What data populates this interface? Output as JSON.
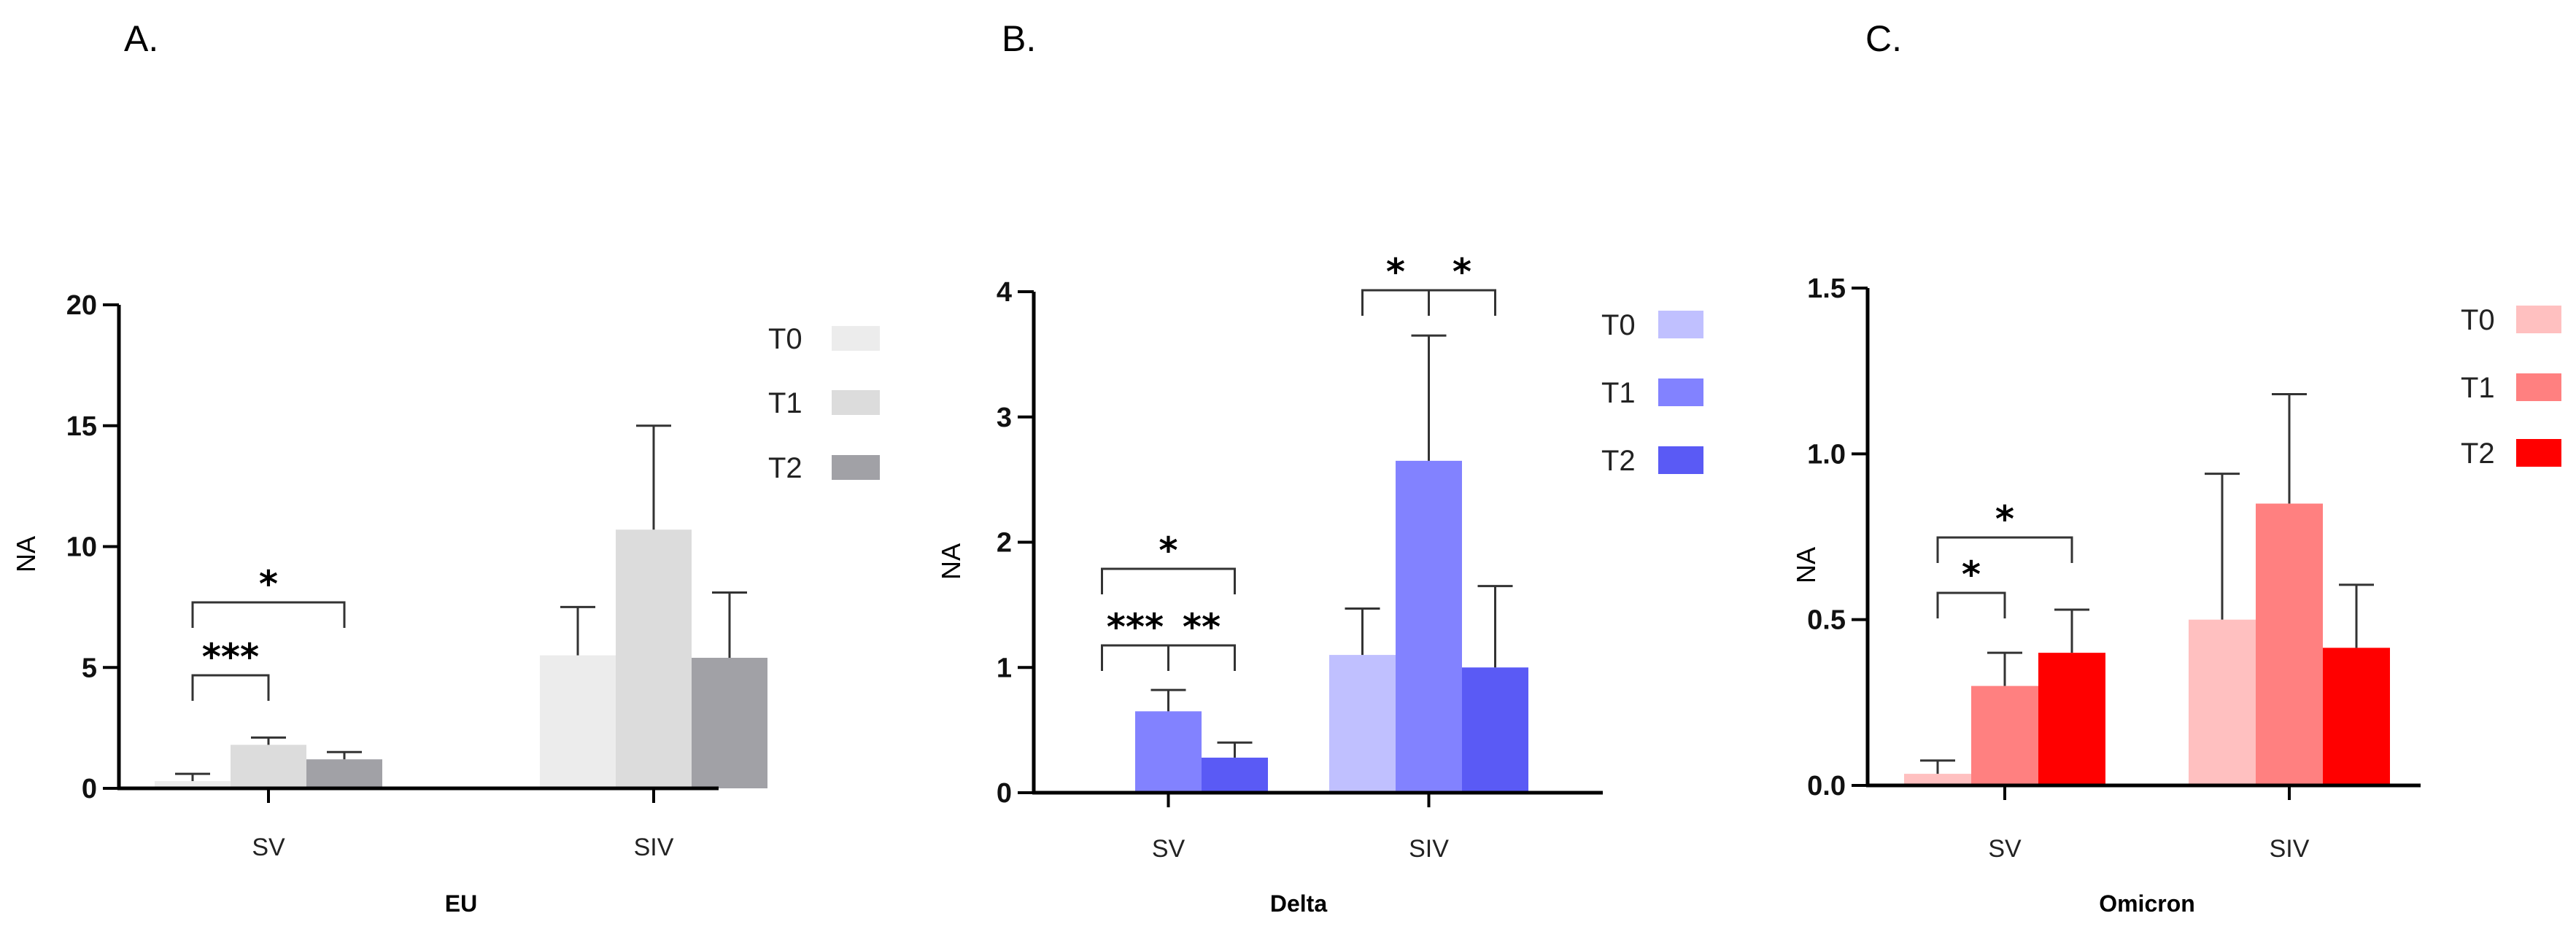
{
  "figure_title": "",
  "chart_data": [
    {
      "panel": "A.",
      "type": "bar",
      "title": "",
      "xlabel": "EU",
      "ylabel": "NA",
      "categories": [
        "SV",
        "SIV"
      ],
      "ylim": [
        0,
        20
      ],
      "yticks": [
        0,
        5,
        10,
        15,
        20
      ],
      "ytick_labels": [
        "0",
        "5",
        "10",
        "15",
        "20"
      ],
      "series": [
        {
          "name": "T0",
          "color": "#ececec",
          "values": [
            0.3,
            5.5
          ],
          "errors": [
            0.3,
            2.0
          ]
        },
        {
          "name": "T1",
          "color": "#dcdcdc",
          "values": [
            1.8,
            10.7
          ],
          "errors": [
            0.3,
            4.3
          ]
        },
        {
          "name": "T2",
          "color": "#a1a1a6",
          "values": [
            1.2,
            5.4
          ],
          "errors": [
            0.3,
            2.7
          ]
        }
      ],
      "significance": [
        {
          "category": "SV",
          "from": "T0",
          "to": "T1",
          "label": "***"
        },
        {
          "category": "SV",
          "from": "T0",
          "to": "T2",
          "label": "*"
        }
      ]
    },
    {
      "panel": "B.",
      "type": "bar",
      "title": "",
      "xlabel": "Delta",
      "ylabel": "NA",
      "categories": [
        "SV",
        "SIV"
      ],
      "ylim": [
        0,
        4
      ],
      "yticks": [
        0,
        1,
        2,
        3,
        4
      ],
      "ytick_labels": [
        "0",
        "1",
        "2",
        "3",
        "4"
      ],
      "series": [
        {
          "name": "T0",
          "color": "#c0c0ff",
          "values": [
            0,
            1.1
          ],
          "errors": [
            0,
            0.37
          ]
        },
        {
          "name": "T1",
          "color": "#8282ff",
          "values": [
            0.65,
            2.65
          ],
          "errors": [
            0.17,
            1.0
          ]
        },
        {
          "name": "T2",
          "color": "#5a5af5",
          "values": [
            0.28,
            1.0
          ],
          "errors": [
            0.12,
            0.65
          ]
        }
      ],
      "significance": [
        {
          "category": "SV",
          "from": "T0",
          "to": "T1",
          "label": "***"
        },
        {
          "category": "SV",
          "from": "T1",
          "to": "T2",
          "label": "**"
        },
        {
          "category": "SV",
          "from": "T0",
          "to": "T2",
          "label": "*"
        },
        {
          "category": "SIV",
          "from": "T0",
          "to": "T1",
          "label": "*"
        },
        {
          "category": "SIV",
          "from": "T1",
          "to": "T2",
          "label": "*"
        }
      ]
    },
    {
      "panel": "C.",
      "type": "bar",
      "title": "",
      "xlabel": "Omicron",
      "ylabel": "NA",
      "categories": [
        "SV",
        "SIV"
      ],
      "ylim": [
        0,
        1.5
      ],
      "yticks": [
        0,
        0.5,
        1.0,
        1.5
      ],
      "ytick_labels": [
        "0.0",
        "0.5",
        "1.0",
        "1.5"
      ],
      "series": [
        {
          "name": "T0",
          "color": "#ffc0c0",
          "values": [
            0.035,
            0.5
          ],
          "errors": [
            0.04,
            0.44
          ]
        },
        {
          "name": "T1",
          "color": "#ff8080",
          "values": [
            0.3,
            0.85
          ],
          "errors": [
            0.1,
            0.33
          ]
        },
        {
          "name": "T2",
          "color": "#ff0000",
          "values": [
            0.4,
            0.415
          ],
          "errors": [
            0.13,
            0.19
          ]
        }
      ],
      "significance": [
        {
          "category": "SV",
          "from": "T0",
          "to": "T1",
          "label": "*"
        },
        {
          "category": "SV",
          "from": "T0",
          "to": "T2",
          "label": "*"
        }
      ]
    }
  ]
}
